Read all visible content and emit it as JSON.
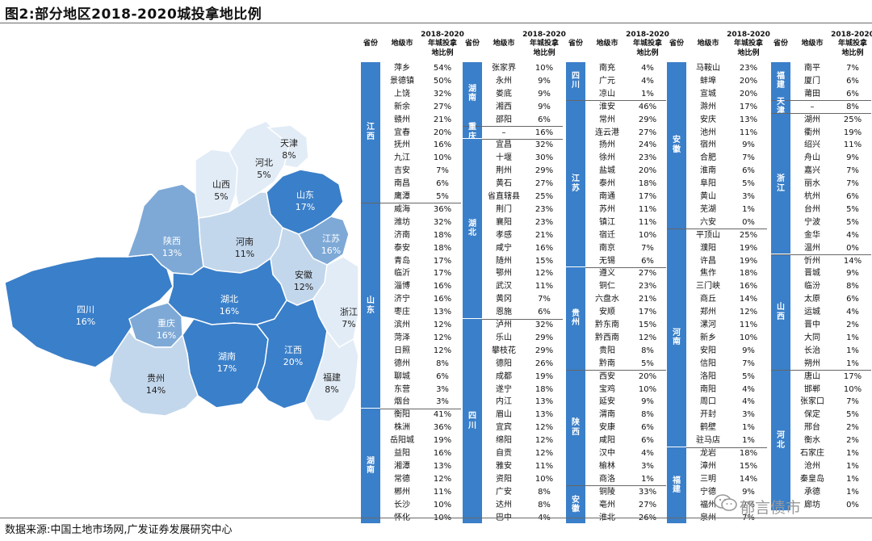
{
  "title": "图2:部分地区2018-2020城投拿地比例",
  "source": "数据来源:中国土地市场网,广发证券发展研究中心",
  "watermark": "郁言债市",
  "colors": {
    "dark": "#3a7fc9",
    "mid": "#7ea9d6",
    "light": "#c3d7ec",
    "lightest": "#e2ecf6",
    "border": "#ffffff"
  },
  "table_headers": {
    "province": "省份",
    "city": "地级市",
    "ratio": "2018-2020\n年城投拿\n地比例"
  },
  "chart_data": [
    {
      "type": "map",
      "regions": [
        {
          "name": "四川",
          "value": "16%"
        },
        {
          "name": "重庆",
          "value": "16%"
        },
        {
          "name": "陕西",
          "value": "13%"
        },
        {
          "name": "山西",
          "value": "5%"
        },
        {
          "name": "河北",
          "value": "5%"
        },
        {
          "name": "天津",
          "value": "8%"
        },
        {
          "name": "山东",
          "value": "17%"
        },
        {
          "name": "河南",
          "value": "11%"
        },
        {
          "name": "江苏",
          "value": "16%"
        },
        {
          "name": "安徽",
          "value": "12%"
        },
        {
          "name": "湖北",
          "value": "16%"
        },
        {
          "name": "浙江",
          "value": "7%"
        },
        {
          "name": "湖南",
          "value": "17%"
        },
        {
          "name": "江西",
          "value": "20%"
        },
        {
          "name": "福建",
          "value": "8%"
        },
        {
          "name": "贵州",
          "value": "14%"
        }
      ]
    },
    {
      "type": "table",
      "columns": [
        {
          "groups": [
            {
              "prov": "江西",
              "rows": [
                [
                  "萍乡",
                  "54%"
                ],
                [
                  "景德镇",
                  "50%"
                ],
                [
                  "上饶",
                  "32%"
                ],
                [
                  "新余",
                  "27%"
                ],
                [
                  "赣州",
                  "21%"
                ],
                [
                  "宜春",
                  "20%"
                ],
                [
                  "抚州",
                  "16%"
                ],
                [
                  "九江",
                  "10%"
                ],
                [
                  "吉安",
                  "7%"
                ],
                [
                  "南昌",
                  "6%"
                ],
                [
                  "鹰潭",
                  "5%"
                ]
              ]
            },
            {
              "prov": "山东",
              "rows": [
                [
                  "威海",
                  "36%"
                ],
                [
                  "潍坊",
                  "32%"
                ],
                [
                  "济南",
                  "18%"
                ],
                [
                  "泰安",
                  "18%"
                ],
                [
                  "青岛",
                  "17%"
                ],
                [
                  "临沂",
                  "17%"
                ],
                [
                  "淄博",
                  "16%"
                ],
                [
                  "济宁",
                  "16%"
                ],
                [
                  "枣庄",
                  "13%"
                ],
                [
                  "滨州",
                  "12%"
                ],
                [
                  "菏泽",
                  "12%"
                ],
                [
                  "日照",
                  "12%"
                ],
                [
                  "德州",
                  "8%"
                ],
                [
                  "聊城",
                  "6%"
                ],
                [
                  "东营",
                  "3%"
                ],
                [
                  "烟台",
                  "3%"
                ]
              ]
            },
            {
              "prov": "湖南",
              "rows": [
                [
                  "衡阳",
                  "41%"
                ],
                [
                  "株洲",
                  "36%"
                ],
                [
                  "岳阳城",
                  "19%"
                ],
                [
                  "益阳",
                  "16%"
                ],
                [
                  "湘潭",
                  "13%"
                ],
                [
                  "常德",
                  "12%"
                ],
                [
                  "郴州",
                  "11%"
                ],
                [
                  "长沙",
                  "10%"
                ],
                [
                  "怀化",
                  "10%"
                ]
              ]
            }
          ]
        },
        {
          "groups": [
            {
              "prov": "湖南",
              "rows": [
                [
                  "张家界",
                  "10%"
                ],
                [
                  "永州",
                  "9%"
                ],
                [
                  "娄底",
                  "9%"
                ],
                [
                  "湘西",
                  "9%"
                ],
                [
                  "邵阳",
                  "6%"
                ]
              ]
            },
            {
              "prov": "重庆",
              "rows": [
                [
                  "–",
                  "16%"
                ]
              ]
            },
            {
              "prov": "湖北",
              "rows": [
                [
                  "宜昌",
                  "32%"
                ],
                [
                  "十堰",
                  "30%"
                ],
                [
                  "荆州",
                  "29%"
                ],
                [
                  "黄石",
                  "27%"
                ],
                [
                  "省直辖县",
                  "25%"
                ],
                [
                  "荆门",
                  "23%"
                ],
                [
                  "襄阳",
                  "23%"
                ],
                [
                  "孝感",
                  "21%"
                ],
                [
                  "咸宁",
                  "16%"
                ],
                [
                  "随州",
                  "15%"
                ],
                [
                  "鄂州",
                  "12%"
                ],
                [
                  "武汉",
                  "11%"
                ],
                [
                  "黄冈",
                  "7%"
                ],
                [
                  "恩施",
                  "6%"
                ]
              ]
            },
            {
              "prov": "四川",
              "rows": [
                [
                  "泸州",
                  "32%"
                ],
                [
                  "乐山",
                  "29%"
                ],
                [
                  "攀枝花",
                  "29%"
                ],
                [
                  "德阳",
                  "26%"
                ],
                [
                  "成都",
                  "19%"
                ],
                [
                  "遂宁",
                  "18%"
                ],
                [
                  "内江",
                  "13%"
                ],
                [
                  "眉山",
                  "13%"
                ],
                [
                  "宜宾",
                  "12%"
                ],
                [
                  "绵阳",
                  "12%"
                ],
                [
                  "自贡",
                  "12%"
                ],
                [
                  "雅安",
                  "11%"
                ],
                [
                  "资阳",
                  "10%"
                ],
                [
                  "广安",
                  "8%"
                ],
                [
                  "达州",
                  "8%"
                ],
                [
                  "巴中",
                  "4%"
                ]
              ]
            }
          ]
        },
        {
          "groups": [
            {
              "prov": "四川",
              "rows": [
                [
                  "南充",
                  "4%"
                ],
                [
                  "广元",
                  "4%"
                ],
                [
                  "凉山",
                  "1%"
                ]
              ]
            },
            {
              "prov": "江苏",
              "rows": [
                [
                  "淮安",
                  "46%"
                ],
                [
                  "常州",
                  "29%"
                ],
                [
                  "连云港",
                  "27%"
                ],
                [
                  "扬州",
                  "24%"
                ],
                [
                  "徐州",
                  "23%"
                ],
                [
                  "盐城",
                  "20%"
                ],
                [
                  "泰州",
                  "18%"
                ],
                [
                  "南通",
                  "17%"
                ],
                [
                  "苏州",
                  "11%"
                ],
                [
                  "镇江",
                  "11%"
                ],
                [
                  "宿迁",
                  "10%"
                ],
                [
                  "南京",
                  "7%"
                ],
                [
                  "无锡",
                  "6%"
                ]
              ]
            },
            {
              "prov": "贵州",
              "rows": [
                [
                  "遵义",
                  "27%"
                ],
                [
                  "铜仁",
                  "23%"
                ],
                [
                  "六盘水",
                  "21%"
                ],
                [
                  "安顺",
                  "17%"
                ],
                [
                  "黔东南",
                  "15%"
                ],
                [
                  "黔西南",
                  "12%"
                ],
                [
                  "贵阳",
                  "8%"
                ],
                [
                  "黔南",
                  "5%"
                ]
              ]
            },
            {
              "prov": "陕西",
              "rows": [
                [
                  "西安",
                  "20%"
                ],
                [
                  "宝鸡",
                  "10%"
                ],
                [
                  "延安",
                  "9%"
                ],
                [
                  "渭南",
                  "8%"
                ],
                [
                  "安康",
                  "6%"
                ],
                [
                  "咸阳",
                  "6%"
                ],
                [
                  "汉中",
                  "4%"
                ],
                [
                  "榆林",
                  "3%"
                ],
                [
                  "商洛",
                  "1%"
                ]
              ]
            },
            {
              "prov": "安徽",
              "rows": [
                [
                  "铜陵",
                  "33%"
                ],
                [
                  "亳州",
                  "27%"
                ],
                [
                  "淮北",
                  "26%"
                ]
              ]
            }
          ]
        },
        {
          "groups": [
            {
              "prov": "安徽",
              "rows": [
                [
                  "马鞍山",
                  "23%"
                ],
                [
                  "蚌埠",
                  "20%"
                ],
                [
                  "宣城",
                  "20%"
                ],
                [
                  "滁州",
                  "17%"
                ],
                [
                  "安庆",
                  "13%"
                ],
                [
                  "池州",
                  "11%"
                ],
                [
                  "宿州",
                  "9%"
                ],
                [
                  "合肥",
                  "7%"
                ],
                [
                  "淮南",
                  "6%"
                ],
                [
                  "阜阳",
                  "5%"
                ],
                [
                  "黄山",
                  "3%"
                ],
                [
                  "芜湖",
                  "1%"
                ],
                [
                  "六安",
                  "0%"
                ]
              ]
            },
            {
              "prov": "河南",
              "rows": [
                [
                  "平顶山",
                  "25%"
                ],
                [
                  "濮阳",
                  "19%"
                ],
                [
                  "许昌",
                  "19%"
                ],
                [
                  "焦作",
                  "18%"
                ],
                [
                  "三门峡",
                  "16%"
                ],
                [
                  "商丘",
                  "14%"
                ],
                [
                  "郑州",
                  "12%"
                ],
                [
                  "漯河",
                  "11%"
                ],
                [
                  "新乡",
                  "10%"
                ],
                [
                  "安阳",
                  "9%"
                ],
                [
                  "信阳",
                  "7%"
                ],
                [
                  "洛阳",
                  "5%"
                ],
                [
                  "南阳",
                  "4%"
                ],
                [
                  "周口",
                  "4%"
                ],
                [
                  "开封",
                  "3%"
                ],
                [
                  "鹤壁",
                  "1%"
                ],
                [
                  "驻马店",
                  "1%"
                ]
              ]
            },
            {
              "prov": "福建",
              "rows": [
                [
                  "龙岩",
                  "18%"
                ],
                [
                  "漳州",
                  "15%"
                ],
                [
                  "三明",
                  "14%"
                ],
                [
                  "宁德",
                  "9%"
                ],
                [
                  "福州",
                  "7%"
                ],
                [
                  "泉州",
                  "7%"
                ]
              ]
            }
          ]
        },
        {
          "groups": [
            {
              "prov": "福建",
              "rows": [
                [
                  "南平",
                  "7%"
                ],
                [
                  "厦门",
                  "6%"
                ],
                [
                  "莆田",
                  "6%"
                ]
              ]
            },
            {
              "prov": "天津",
              "rows": [
                [
                  "–",
                  "8%"
                ]
              ]
            },
            {
              "prov": "浙江",
              "rows": [
                [
                  "湖州",
                  "25%"
                ],
                [
                  "衢州",
                  "19%"
                ],
                [
                  "绍兴",
                  "11%"
                ],
                [
                  "舟山",
                  "9%"
                ],
                [
                  "嘉兴",
                  "7%"
                ],
                [
                  "丽水",
                  "7%"
                ],
                [
                  "杭州",
                  "6%"
                ],
                [
                  "台州",
                  "5%"
                ],
                [
                  "宁波",
                  "5%"
                ],
                [
                  "金华",
                  "4%"
                ],
                [
                  "温州",
                  "0%"
                ]
              ]
            },
            {
              "prov": "山西",
              "rows": [
                [
                  "忻州",
                  "14%"
                ],
                [
                  "晋城",
                  "9%"
                ],
                [
                  "临汾",
                  "8%"
                ],
                [
                  "太原",
                  "6%"
                ],
                [
                  "运城",
                  "4%"
                ],
                [
                  "晋中",
                  "2%"
                ],
                [
                  "大同",
                  "1%"
                ],
                [
                  "长治",
                  "1%"
                ],
                [
                  "朔州",
                  "1%"
                ]
              ]
            },
            {
              "prov": "河北",
              "rows": [
                [
                  "唐山",
                  "17%"
                ],
                [
                  "邯郸",
                  "10%"
                ],
                [
                  "张家口",
                  "7%"
                ],
                [
                  "保定",
                  "5%"
                ],
                [
                  "邢台",
                  "2%"
                ],
                [
                  "衡水",
                  "2%"
                ],
                [
                  "石家庄",
                  "1%"
                ],
                [
                  "沧州",
                  "1%"
                ],
                [
                  "秦皇岛",
                  "1%"
                ],
                [
                  "承德",
                  "1%"
                ],
                [
                  "廊坊",
                  "0%"
                ]
              ]
            }
          ]
        }
      ]
    }
  ]
}
